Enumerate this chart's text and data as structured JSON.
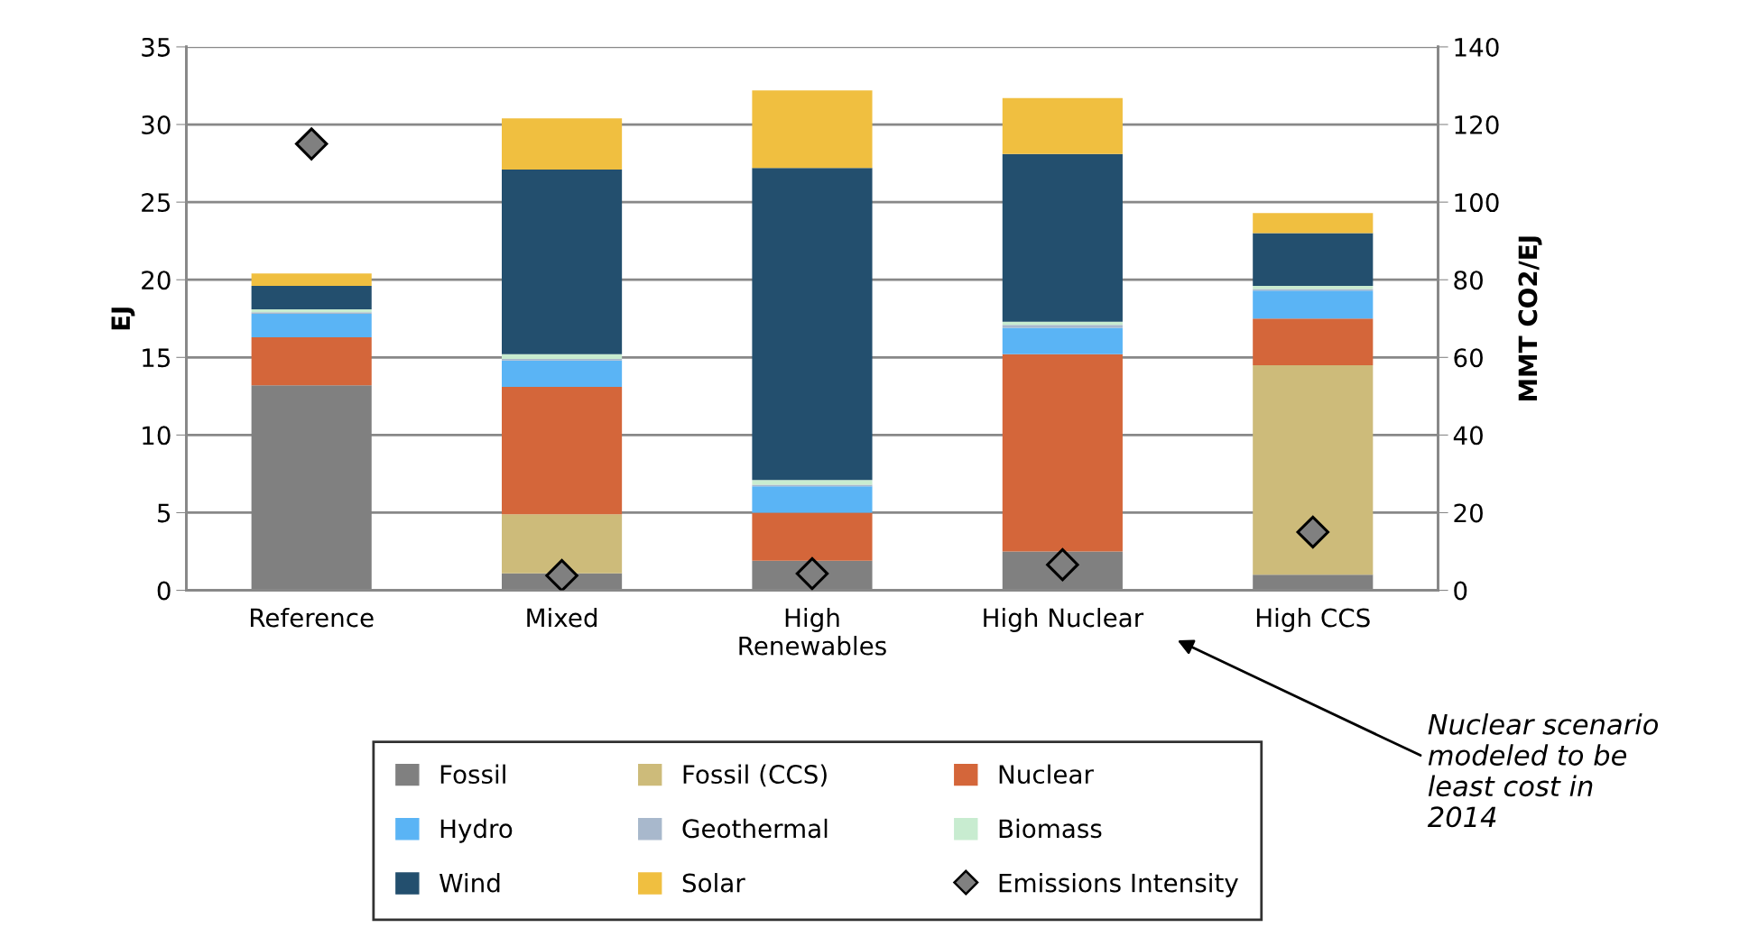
{
  "chart_data": {
    "type": "bar",
    "stacked": true,
    "categories": [
      "Reference",
      "Mixed",
      "High\nRenewables",
      "High Nuclear",
      "High CCS"
    ],
    "series": [
      {
        "name": "Fossil",
        "color": "#808080",
        "values": [
          13.2,
          1.1,
          1.9,
          2.5,
          1.0
        ]
      },
      {
        "name": "Fossil (CCS)",
        "color": "#cdbb7a",
        "values": [
          0,
          3.8,
          0,
          0,
          13.5
        ]
      },
      {
        "name": "Nuclear",
        "color": "#d4663a",
        "values": [
          3.1,
          8.2,
          3.1,
          12.7,
          3.0
        ]
      },
      {
        "name": "Hydro",
        "color": "#5ab4f5",
        "values": [
          1.5,
          1.7,
          1.7,
          1.7,
          1.8
        ]
      },
      {
        "name": "Geothermal",
        "color": "#a8b8cc",
        "values": [
          0.1,
          0.1,
          0.1,
          0.2,
          0.1
        ]
      },
      {
        "name": "Biomass",
        "color": "#c8ecd0",
        "values": [
          0.2,
          0.3,
          0.3,
          0.2,
          0.2
        ]
      },
      {
        "name": "Wind",
        "color": "#234f6e",
        "values": [
          1.5,
          11.9,
          20.1,
          10.8,
          3.4
        ]
      },
      {
        "name": "Solar",
        "color": "#f0bf40",
        "values": [
          0.8,
          3.3,
          5.0,
          3.6,
          1.3
        ]
      },
      {
        "name": "Emissions Intensity",
        "type": "scatter",
        "axis": "y2",
        "marker": "diamond",
        "color": "#808080",
        "values": [
          115,
          3.8,
          4.3,
          6.6,
          15
        ]
      }
    ],
    "ylabel": "EJ",
    "y2label": "MMT CO2/EJ",
    "ylim": [
      0,
      35
    ],
    "yticks": [
      0,
      5,
      10,
      15,
      20,
      25,
      30,
      35
    ],
    "y2lim": [
      0,
      140
    ],
    "y2ticks": [
      0,
      20,
      40,
      60,
      80,
      100,
      120,
      140
    ],
    "grid": "y",
    "legend": "bottom",
    "annotations": [
      "Nuclear scenario\nmodeled to be\nleast cost in\n2014"
    ]
  }
}
